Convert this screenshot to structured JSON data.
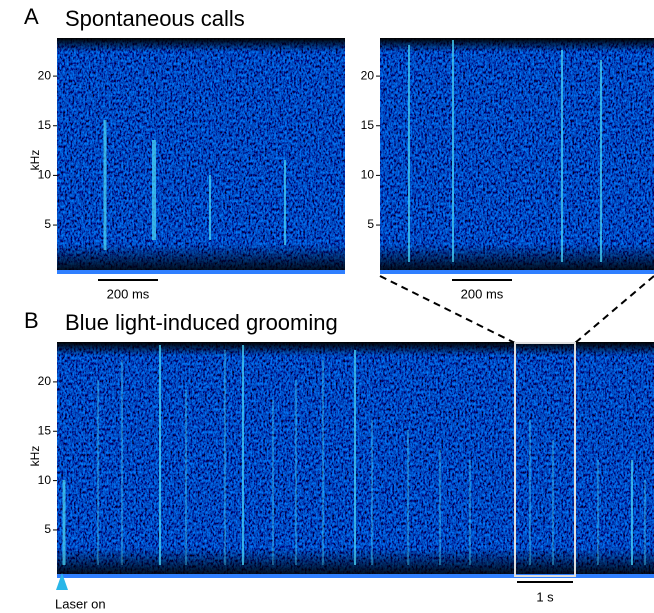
{
  "panels": [
    {
      "label": "A",
      "title": "Spontaneous calls",
      "y_axis_label": "kHz",
      "yticks": [
        5,
        10,
        15,
        20
      ],
      "scale_bar": "200 ms"
    },
    {
      "label": "B",
      "title": "Blue light-induced grooming",
      "y_axis_label": "kHz",
      "yticks": [
        5,
        10,
        15,
        20
      ],
      "scale_bar": "1 s",
      "annotation": "Laser on"
    }
  ]
}
